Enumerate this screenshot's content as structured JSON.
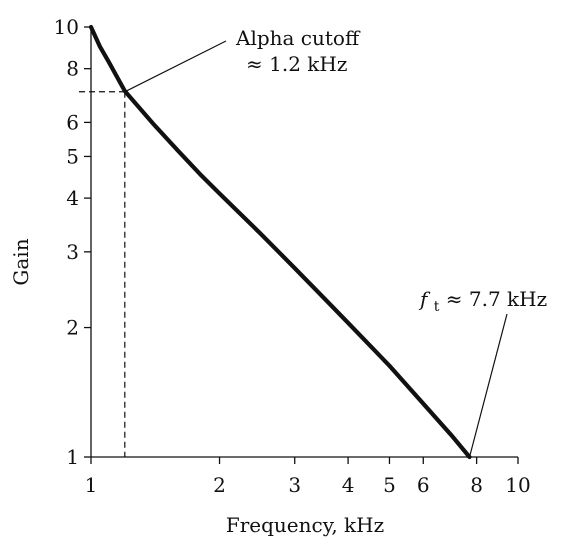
{
  "chart_data": {
    "type": "line",
    "title": "",
    "xlabel": "Frequency, kHz",
    "ylabel": "Gain",
    "x_scale": "log",
    "y_scale": "log",
    "xlim": [
      1,
      10
    ],
    "ylim": [
      1,
      10
    ],
    "x_ticks": [
      1,
      2,
      3,
      4,
      5,
      6,
      8,
      10
    ],
    "x_tick_labels": [
      "1",
      "2",
      "3",
      "4",
      "5",
      "6",
      "8",
      "10"
    ],
    "y_ticks": [
      1,
      2,
      3,
      4,
      5,
      6,
      8,
      10
    ],
    "y_tick_labels": [
      "1",
      "2",
      "3",
      "4",
      "5",
      "6",
      "8",
      "10"
    ],
    "grid": false,
    "series": [
      {
        "x": [
          1.0,
          1.05,
          1.1,
          1.2,
          1.4,
          1.6,
          1.8,
          2.0,
          2.5,
          3.0,
          3.5,
          4.0,
          5.0,
          6.0,
          7.0,
          7.7
        ],
        "y": [
          10.0,
          9.0,
          8.3,
          7.1,
          5.95,
          5.15,
          4.55,
          4.1,
          3.3,
          2.75,
          2.35,
          2.05,
          1.63,
          1.33,
          1.12,
          1.0
        ]
      }
    ],
    "annotations": [
      {
        "id": "alpha",
        "line1": "Alpha cutoff",
        "line2": "≈ 1.2 kHz",
        "point": [
          1.2,
          7.07
        ]
      },
      {
        "id": "ft",
        "symbol": "f",
        "subscript": "t",
        "value_text": " ≈ 7.7 kHz",
        "point": [
          7.7,
          1.0
        ]
      }
    ]
  }
}
